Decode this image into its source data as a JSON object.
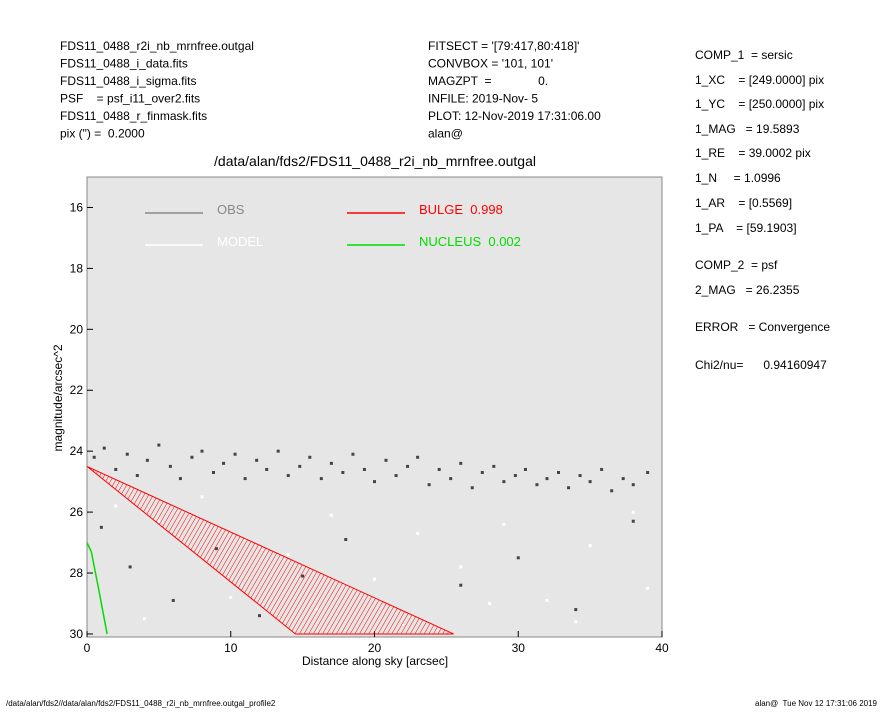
{
  "header": {
    "left": [
      "FDS11_0488_r2i_nb_mrnfree.outgal",
      "FDS11_0488_i_data.fits",
      "FDS11_0488_i_sigma.fits",
      "PSF    = psf_i11_over2.fits",
      "FDS11_0488_r_finmask.fits",
      "pix (\") =  0.2000"
    ],
    "middle": [
      "FITSECT = '[79:417,80:418]'",
      "CONVBOX = '101, 101'",
      "MAGZPT  =              0.",
      "INFILE: 2019-Nov- 5",
      "PLOT: 12-Nov-2019 17:31:06.00",
      "alan@"
    ]
  },
  "params": [
    "COMP_1  = sersic",
    "1_XC    = [249.0000] pix",
    "1_YC    = [250.0000] pix",
    "1_MAG   = 19.5893",
    "1_RE    = 39.0002 pix",
    "1_N     = 1.0996",
    "1_AR    = [0.5569]",
    "1_PA    = [59.1903]",
    "COMP_2  = psf",
    "2_MAG   = 26.2355",
    "ERROR   = Convergence",
    "Chi2/nu=      0.94160947"
  ],
  "footer": {
    "left": "/data/alan/fds2//data/alan/fds2/FDS11_0488_r2i_nb_mrnfree.outgal_profile2",
    "right": "alan@  Tue Nov 12 17:31:06 2019"
  },
  "chart_data": {
    "type": "scatter",
    "title": "/data/alan/fds2/FDS11_0488_r2i_nb_mrnfree.outgal",
    "xlabel": "Distance along sky [arcsec]",
    "ylabel": "magnitude/arcsec^2",
    "xlim": [
      0,
      40
    ],
    "ylim": [
      15,
      30.1
    ],
    "y_inverted": true,
    "xticks": [
      0,
      10,
      20,
      30,
      40
    ],
    "yticks": [
      16,
      18,
      20,
      22,
      24,
      26,
      28,
      30
    ],
    "series": [
      {
        "name": "OBS",
        "color": "#444444",
        "legend_color": "#888888",
        "mode": "points",
        "x": [
          0.5,
          1.2,
          2,
          2.8,
          3.5,
          4.2,
          5,
          5.8,
          6.5,
          7.3,
          8,
          8.8,
          9.5,
          10.3,
          11,
          11.8,
          12.5,
          13.3,
          14,
          14.8,
          15.5,
          16.3,
          17,
          17.8,
          18.5,
          19.3,
          20,
          20.8,
          21.5,
          22.3,
          23,
          23.8,
          24.5,
          25.3,
          26,
          26.8,
          27.5,
          28.3,
          29,
          29.8,
          30.5,
          31.3,
          32,
          32.8,
          33.5,
          34.3,
          35,
          35.8,
          36.5,
          37.3,
          38,
          39,
          1,
          3,
          6,
          9,
          12,
          15,
          18,
          22,
          26,
          30,
          34,
          38
        ],
        "values": [
          24.2,
          23.9,
          24.6,
          24.1,
          24.8,
          24.3,
          23.8,
          24.5,
          24.9,
          24.2,
          24.0,
          24.7,
          24.4,
          24.1,
          24.9,
          24.3,
          24.6,
          24.0,
          24.8,
          24.5,
          24.2,
          24.9,
          24.4,
          24.7,
          24.1,
          24.6,
          25.0,
          24.3,
          24.8,
          24.5,
          24.2,
          25.1,
          24.6,
          24.9,
          24.4,
          25.2,
          24.7,
          24.5,
          25.0,
          24.8,
          24.6,
          25.1,
          24.9,
          24.7,
          25.2,
          24.8,
          25.0,
          24.6,
          25.3,
          24.9,
          25.1,
          24.7,
          26.5,
          27.8,
          28.9,
          27.2,
          29.4,
          28.1,
          26.9,
          29.7,
          28.4,
          27.5,
          29.2,
          26.3
        ]
      },
      {
        "name": "MODEL",
        "color": "#ffffff",
        "mode": "points",
        "x": [
          2,
          5,
          8,
          11,
          14,
          17,
          20,
          23,
          26,
          29,
          32,
          35,
          38,
          4,
          10,
          16,
          22,
          28,
          34,
          39
        ],
        "values": [
          25.8,
          26.3,
          25.5,
          26.9,
          27.4,
          26.1,
          28.2,
          26.7,
          27.8,
          26.4,
          28.9,
          27.1,
          26.0,
          29.5,
          28.8,
          29.2,
          29.7,
          29.0,
          29.6,
          28.5
        ]
      },
      {
        "name": "BULGE  0.998",
        "color": "#ff0000",
        "mode": "band",
        "x": [
          0,
          25.5
        ],
        "values": [
          24.5,
          30
        ],
        "x_lower": [
          0,
          14.5
        ],
        "values_lower": [
          24.5,
          30
        ]
      },
      {
        "name": "NUCLEUS  0.002",
        "color": "#00dd00",
        "mode": "line",
        "x": [
          0,
          0.3,
          0.8,
          1.4
        ],
        "values": [
          27,
          27.3,
          28.5,
          30
        ]
      }
    ]
  }
}
